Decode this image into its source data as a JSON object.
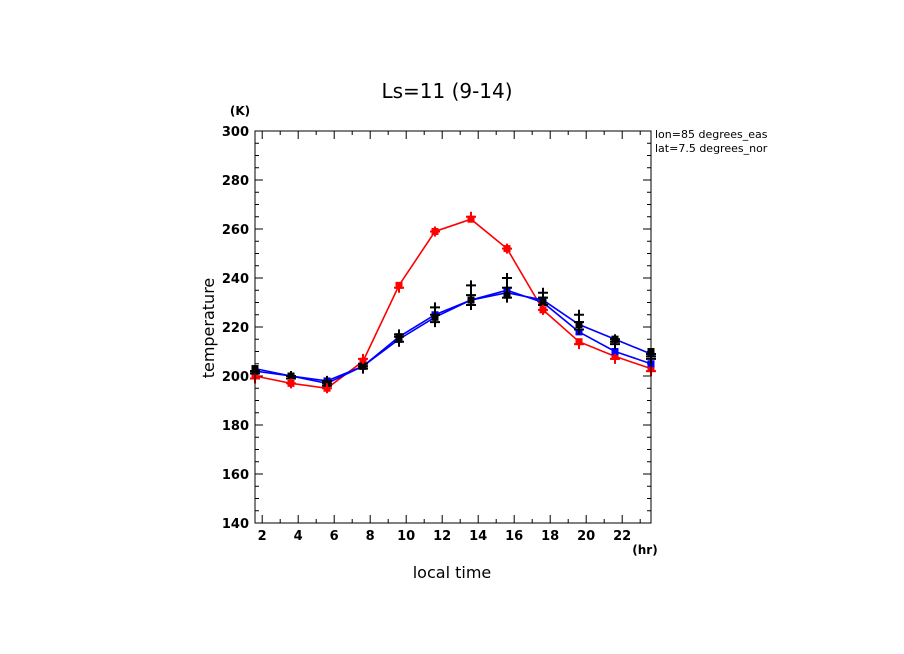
{
  "chart_data": {
    "type": "line",
    "title": "Ls=11 (9-14)",
    "xlabel": "local time",
    "ylabel": "temperature",
    "x_unit": "(hr)",
    "y_unit": "(K)",
    "xlim": [
      1.6,
      23.6
    ],
    "ylim": [
      140,
      300
    ],
    "x_ticks": [
      2,
      4,
      6,
      8,
      10,
      12,
      14,
      16,
      18,
      20,
      22
    ],
    "y_ticks": [
      140,
      160,
      180,
      200,
      220,
      240,
      260,
      280,
      300
    ],
    "annotations": [
      "lon=85 degrees_eas",
      "lat=7.5 degrees_nor"
    ],
    "grid": false,
    "x": [
      1.6,
      3.6,
      5.6,
      7.6,
      9.6,
      11.6,
      13.6,
      15.6,
      17.6,
      19.6,
      21.6,
      23.6
    ],
    "series": [
      {
        "color": "#ff0000",
        "style": "line",
        "marker": "square",
        "values": [
          200,
          197,
          195,
          206,
          237,
          259,
          264,
          252,
          227,
          214,
          208,
          203
        ]
      },
      {
        "color": "#0000ff",
        "style": "line",
        "marker": "square",
        "values": [
          202,
          200,
          197,
          204,
          215,
          224,
          231,
          235,
          230,
          218,
          210,
          205
        ]
      },
      {
        "color": "#0000ff",
        "style": "line",
        "marker": "square",
        "values": [
          203,
          200,
          198,
          204,
          216,
          225,
          231,
          234,
          231,
          221,
          215,
          209
        ]
      },
      {
        "color": "#000000",
        "style": "points",
        "marker": "plus",
        "values": [
          202,
          199,
          197,
          204,
          217,
          228,
          237,
          240,
          234,
          225,
          215,
          209
        ]
      },
      {
        "color": "#000000",
        "style": "points",
        "marker": "plus",
        "values": [
          201,
          200,
          198,
          203,
          214,
          222,
          229,
          232,
          229,
          219,
          213,
          207
        ]
      },
      {
        "color": "#000000",
        "style": "points",
        "marker": "plus",
        "values": [
          202,
          199,
          196,
          205,
          216,
          225,
          233,
          236,
          232,
          222,
          214,
          208
        ]
      },
      {
        "color": "#000000",
        "style": "points",
        "marker": "square",
        "values": [
          203,
          200,
          197,
          204,
          216,
          224,
          231,
          233,
          230,
          221,
          215,
          210
        ]
      },
      {
        "color": "#ff0000",
        "style": "points",
        "marker": "plus",
        "values": [
          199,
          197,
          195,
          207,
          236,
          259,
          265,
          252,
          227,
          213,
          207,
          202
        ]
      }
    ]
  }
}
